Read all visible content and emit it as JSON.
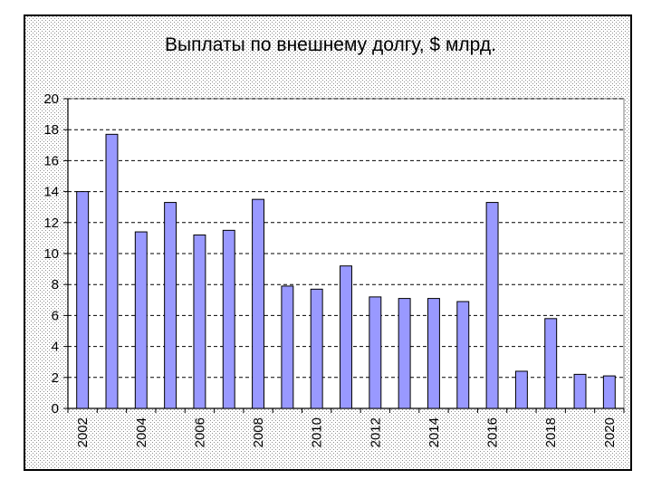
{
  "chart_data": {
    "type": "bar",
    "title": "Выплаты по внешнему долгу, $ млрд.",
    "xlabel": "",
    "ylabel": "",
    "categories": [
      "2002",
      "2003",
      "2004",
      "2005",
      "2006",
      "2007",
      "2008",
      "2009",
      "2010",
      "2011",
      "2012",
      "2013",
      "2014",
      "2015",
      "2016",
      "2017",
      "2018",
      "2019",
      "2020"
    ],
    "x_tick_labels": [
      "2002",
      "",
      "2004",
      "",
      "2006",
      "",
      "2008",
      "",
      "2010",
      "",
      "2012",
      "",
      "2014",
      "",
      "2016",
      "",
      "2018",
      "",
      "2020"
    ],
    "values": [
      14.0,
      17.7,
      11.4,
      13.3,
      11.2,
      11.5,
      13.5,
      7.9,
      7.7,
      9.2,
      7.2,
      7.1,
      7.1,
      6.9,
      13.3,
      2.4,
      5.8,
      2.2,
      2.1
    ],
    "ylim": [
      0,
      20
    ],
    "y_ticks": [
      "0",
      "2",
      "4",
      "6",
      "8",
      "10",
      "12",
      "14",
      "16",
      "18",
      "20"
    ],
    "grid": "dashed horizontal",
    "legend": "none",
    "colors": {
      "bar_fill": "#9999ff",
      "bar_stroke": "#000000",
      "plot_background": "#ffffff",
      "chart_background": "#ffffff",
      "pattern_dots": "#8c8c8c",
      "text": "#000000"
    }
  }
}
